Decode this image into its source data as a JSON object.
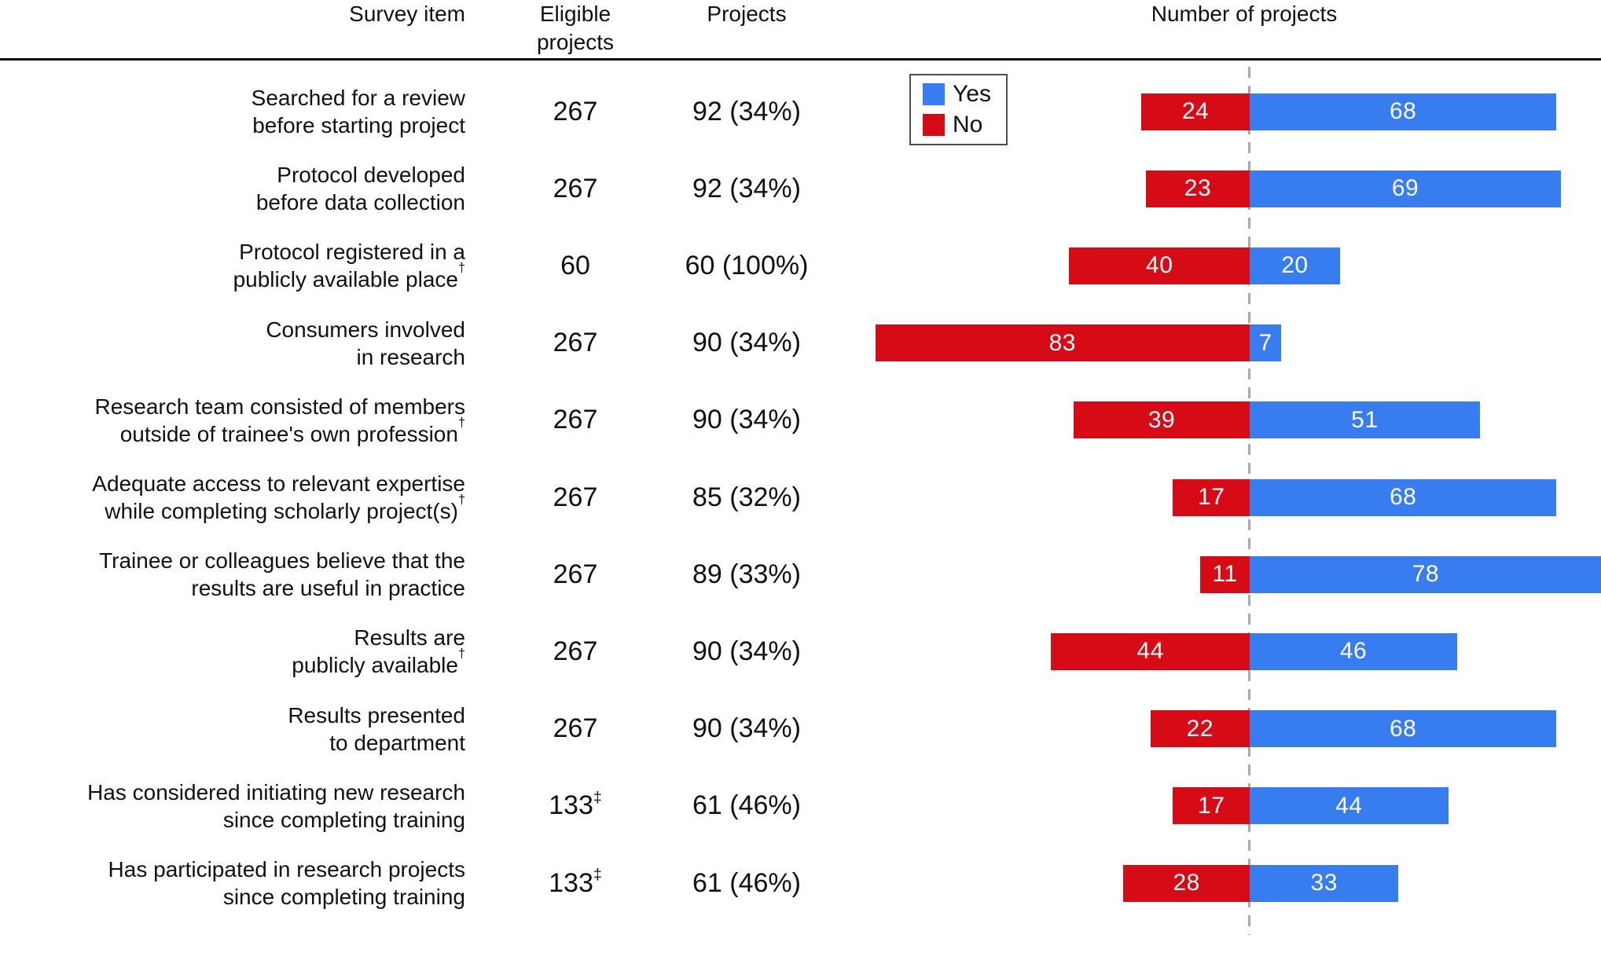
{
  "header": {
    "survey_item": "Survey item",
    "eligible_line1": "Eligible",
    "eligible_line2": "projects",
    "projects": "Projects",
    "number_of_projects": "Number of projects"
  },
  "legend": {
    "yes_label": "Yes",
    "no_label": "No"
  },
  "colors": {
    "yes": "#377df0",
    "no": "#d60b16",
    "rule": "#111111",
    "dashed_line": "#a9a9a9",
    "text": "#111111",
    "bar_label": "#ffffff",
    "legend_border": "#4d4d4d"
  },
  "chart_data": {
    "type": "bar",
    "variant": "diverging-horizontal",
    "title": "Number of projects",
    "xlabel": "Number of projects",
    "legend_entries": [
      {
        "name": "Yes",
        "color": "#377df0",
        "side": "right"
      },
      {
        "name": "No",
        "color": "#d60b16",
        "side": "left"
      }
    ],
    "legend_position": "top-left-of-plot",
    "zero_line": "dashed vertical center line",
    "columns": [
      "Survey item",
      "Eligible projects",
      "Projects",
      "Number of projects (No / Yes)"
    ],
    "rows": [
      {
        "label_line1": "Searched for a review",
        "label_line2": "before starting project",
        "label_sup": "",
        "eligible": "267",
        "eligible_sup": "",
        "projects": "92 (34%)",
        "no": 24,
        "yes": 68
      },
      {
        "label_line1": "Protocol developed",
        "label_line2": "before data collection",
        "label_sup": "",
        "eligible": "267",
        "eligible_sup": "",
        "projects": "92 (34%)",
        "no": 23,
        "yes": 69
      },
      {
        "label_line1": "Protocol registered in a",
        "label_line2": "publicly available place",
        "label_sup": "†",
        "eligible": "60",
        "eligible_sup": "",
        "projects": "60 (100%)",
        "no": 40,
        "yes": 20
      },
      {
        "label_line1": "Consumers involved",
        "label_line2": "in research",
        "label_sup": "",
        "eligible": "267",
        "eligible_sup": "",
        "projects": "90 (34%)",
        "no": 83,
        "yes": 7
      },
      {
        "label_line1": "Research team consisted of members",
        "label_line2": "outside of trainee's own profession",
        "label_sup": "†",
        "eligible": "267",
        "eligible_sup": "",
        "projects": "90 (34%)",
        "no": 39,
        "yes": 51
      },
      {
        "label_line1": "Adequate access to relevant expertise",
        "label_line2": "while completing scholarly project(s)",
        "label_sup": "†",
        "eligible": "267",
        "eligible_sup": "",
        "projects": "85 (32%)",
        "no": 17,
        "yes": 68
      },
      {
        "label_line1": "Trainee or colleagues believe that the",
        "label_line2": "results are useful in practice",
        "label_sup": "",
        "eligible": "267",
        "eligible_sup": "",
        "projects": "89 (33%)",
        "no": 11,
        "yes": 78
      },
      {
        "label_line1": "Results are",
        "label_line2": "publicly available",
        "label_sup": "†",
        "eligible": "267",
        "eligible_sup": "",
        "projects": "90 (34%)",
        "no": 44,
        "yes": 46
      },
      {
        "label_line1": "Results presented",
        "label_line2": "to department",
        "label_sup": "",
        "eligible": "267",
        "eligible_sup": "",
        "projects": "90 (34%)",
        "no": 22,
        "yes": 68
      },
      {
        "label_line1": "Has considered initiating new research",
        "label_line2": "since completing training",
        "label_sup": "",
        "eligible": "133",
        "eligible_sup": "‡",
        "projects": "61 (46%)",
        "no": 17,
        "yes": 44
      },
      {
        "label_line1": "Has participated in research projects",
        "label_line2": "since completing training",
        "label_sup": "",
        "eligible": "133",
        "eligible_sup": "‡",
        "projects": "61 (46%)",
        "no": 28,
        "yes": 33
      }
    ]
  }
}
